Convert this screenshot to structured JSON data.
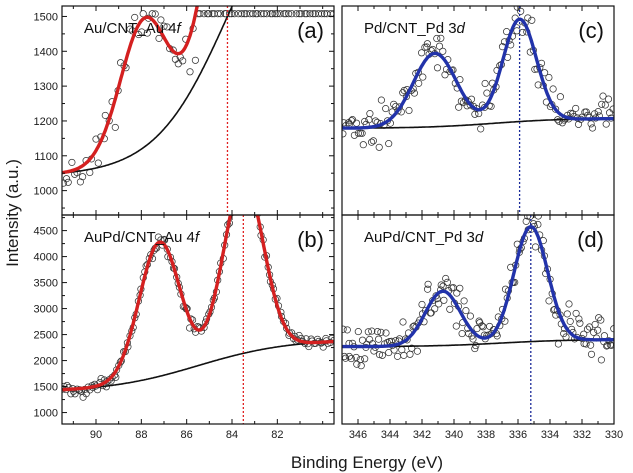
{
  "figure": {
    "xlabel": "Binding Energy (eV)",
    "ylabel": "Intensity (a.u.)"
  },
  "chart_data": [
    {
      "type": "scatter",
      "id": "a",
      "panel_label": "(a)",
      "title_main": "Au/CNT_Au 4",
      "title_italic": "f",
      "xlim": [
        91.5,
        79.5
      ],
      "ylim": [
        930,
        1530
      ],
      "xticks": [
        90,
        88,
        86,
        84,
        82
      ],
      "yticks": [
        1000,
        1100,
        1200,
        1300,
        1400,
        1500
      ],
      "peak_marker_x": 84.2,
      "marker_color": "#e02020",
      "fit_color": "#d42020",
      "background": {
        "a": 1025,
        "b": 918,
        "c": 16,
        "x0": 84.2,
        "w": 1.6
      },
      "peaks": [
        {
          "center": 87.9,
          "amp": 370,
          "sigma": 1.05
        },
        {
          "center": 84.2,
          "amp": 490,
          "sigma": 0.95
        }
      ],
      "scatter": {
        "sd": 35,
        "seed": 11,
        "count": 95,
        "ymax": 1508
      }
    },
    {
      "type": "scatter",
      "id": "b",
      "panel_label": "(b)",
      "title_main": "AuPd/CNT_Au 4",
      "title_italic": "f",
      "xlim": [
        91.5,
        79.5
      ],
      "ylim": [
        780,
        4800
      ],
      "xticks": [
        90,
        88,
        86,
        84,
        82
      ],
      "yticks": [
        1000,
        1500,
        2000,
        2500,
        3000,
        3500,
        4000,
        4500
      ],
      "peak_marker_x": 83.5,
      "marker_color": "#e02020",
      "fit_color": "#d42020",
      "background": {
        "a": 1210,
        "b": 1025,
        "c": 180,
        "x0": 85.5,
        "w": 2.0
      },
      "peaks": [
        {
          "center": 87.2,
          "amp": 2580,
          "sigma": 0.9
        },
        {
          "center": 83.5,
          "amp": 3350,
          "sigma": 0.88
        }
      ],
      "scatter": {
        "sd": 55,
        "seed": 22,
        "count": 170,
        "ymax": 99999
      }
    },
    {
      "type": "scatter",
      "id": "c",
      "panel_label": "(c)",
      "title_main": "Pd/CNT_Pd 3",
      "title_italic": "d",
      "xlim": [
        347,
        330
      ],
      "ylim": [
        0.06,
        1.0
      ],
      "xticks": [
        346,
        344,
        342,
        340,
        338,
        336,
        334,
        332,
        330
      ],
      "yticks": [],
      "peak_marker_x": 335.9,
      "marker_color": "#1a2a9a",
      "fit_color": "#2233aa",
      "background": {
        "a": 0.375,
        "b": 0.045,
        "c": 0.075,
        "x0": 337.5,
        "w": 2.2
      },
      "peaks": [
        {
          "center": 341.2,
          "amp": 0.33,
          "sigma": 1.35
        },
        {
          "center": 335.9,
          "amp": 0.46,
          "sigma": 1.05
        }
      ],
      "scatter": {
        "sd": 0.045,
        "seed": 33,
        "count": 160,
        "ymax": 0.995
      }
    },
    {
      "type": "scatter",
      "id": "d",
      "panel_label": "(d)",
      "title_main": "AuPd/CNT_Pd 3",
      "title_italic": "d",
      "xlim": [
        347,
        330
      ],
      "ylim": [
        0.0,
        1.0
      ],
      "xticks": [
        346,
        344,
        342,
        340,
        338,
        336,
        334,
        332,
        330
      ],
      "yticks": [],
      "peak_marker_x": 335.2,
      "marker_color": "#1a2a9a",
      "fit_color": "#2233aa",
      "background": {
        "a": 0.29,
        "b": 0.035,
        "c": 0.08,
        "x0": 337.0,
        "w": 2.2
      },
      "peaks": [
        {
          "center": 340.7,
          "amp": 0.26,
          "sigma": 1.1
        },
        {
          "center": 335.2,
          "amp": 0.55,
          "sigma": 1.05
        }
      ],
      "scatter": {
        "sd": 0.05,
        "seed": 44,
        "count": 190,
        "ymax": 0.995
      }
    }
  ]
}
